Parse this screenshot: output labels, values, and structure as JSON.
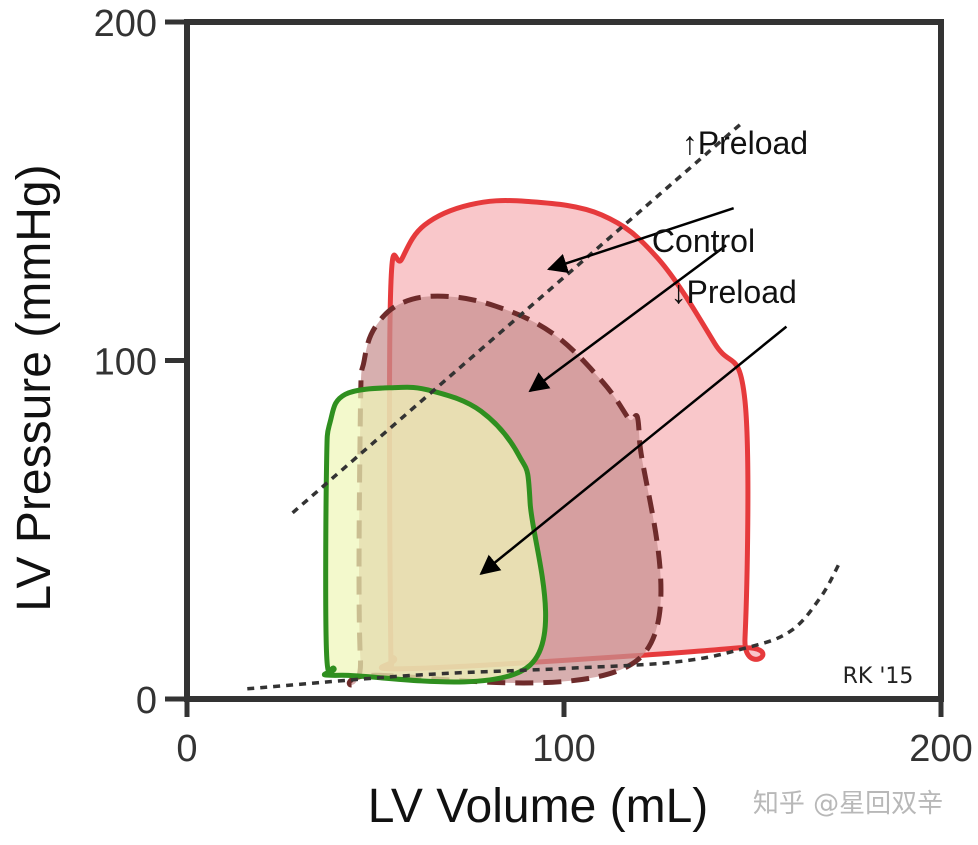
{
  "chart_data": {
    "type": "line",
    "xlabel": "LV Volume (mL)",
    "ylabel": "LV Pressure (mmHg)",
    "xlim": [
      0,
      200
    ],
    "ylim": [
      0,
      200
    ],
    "xticks": [
      0,
      100,
      200
    ],
    "yticks": [
      0,
      100,
      200
    ],
    "grid": false,
    "series": [
      {
        "name": "↑Preload",
        "color": "#e63a3c",
        "fill": "#f7b2b5",
        "dash": false,
        "points": [
          [
            55,
            12
          ],
          [
            60,
            9
          ],
          [
            145,
            15
          ],
          [
            148,
            18
          ],
          [
            148,
            88
          ],
          [
            140,
            105
          ],
          [
            125,
            130
          ],
          [
            110,
            143
          ],
          [
            90,
            147
          ],
          [
            75,
            146
          ],
          [
            63,
            140
          ],
          [
            57,
            130
          ],
          [
            54,
            120
          ],
          [
            54,
            20
          ],
          [
            55,
            12
          ]
        ]
      },
      {
        "name": "Control",
        "color": "#6e2b2b",
        "fill": "#c79090",
        "dash": true,
        "points": [
          [
            50,
            7
          ],
          [
            120,
            12
          ],
          [
            120,
            77
          ],
          [
            117,
            83
          ],
          [
            110,
            94
          ],
          [
            97,
            108
          ],
          [
            82,
            116
          ],
          [
            68,
            119
          ],
          [
            57,
            117
          ],
          [
            50,
            110
          ],
          [
            47,
            100
          ],
          [
            46,
            85
          ],
          [
            46,
            12
          ],
          [
            50,
            7
          ]
        ]
      },
      {
        "name": "↓Preload",
        "color": "#2f8f1f",
        "fill": "#eef7b8",
        "dash": false,
        "points": [
          [
            41,
            7
          ],
          [
            91,
            10
          ],
          [
            91,
            58
          ],
          [
            88,
            72
          ],
          [
            78,
            85
          ],
          [
            65,
            91
          ],
          [
            55,
            92
          ],
          [
            42,
            90
          ],
          [
            38,
            82
          ],
          [
            37,
            68
          ],
          [
            37,
            14
          ],
          [
            39,
            9
          ],
          [
            41,
            7
          ]
        ]
      }
    ],
    "reference_lines": [
      {
        "name": "ESPVR",
        "style": "dotted",
        "points": [
          [
            28,
            55
          ],
          [
            147,
            170
          ]
        ]
      },
      {
        "name": "EDPVR",
        "style": "dotted",
        "points": [
          [
            16,
            3
          ],
          [
            60,
            7
          ],
          [
            100,
            9
          ],
          [
            130,
            11
          ],
          [
            148,
            15
          ],
          [
            160,
            20
          ],
          [
            168,
            30
          ],
          [
            173,
            40
          ]
        ]
      }
    ],
    "annotations": [
      {
        "text": "↑Preload",
        "label_pos": [
          148,
          161
        ],
        "arrow_from": [
          145,
          145
        ],
        "arrow_to": [
          96,
          127
        ]
      },
      {
        "text": "Control",
        "label_pos": [
          137,
          132
        ],
        "arrow_from": [
          143,
          134
        ],
        "arrow_to": [
          91,
          91
        ]
      },
      {
        "text": "↓Preload",
        "label_pos": [
          145,
          117
        ],
        "arrow_from": [
          159,
          110
        ],
        "arrow_to": [
          78,
          37
        ]
      }
    ],
    "signature": "RK '15"
  },
  "watermark": "知乎 @星回双辛"
}
